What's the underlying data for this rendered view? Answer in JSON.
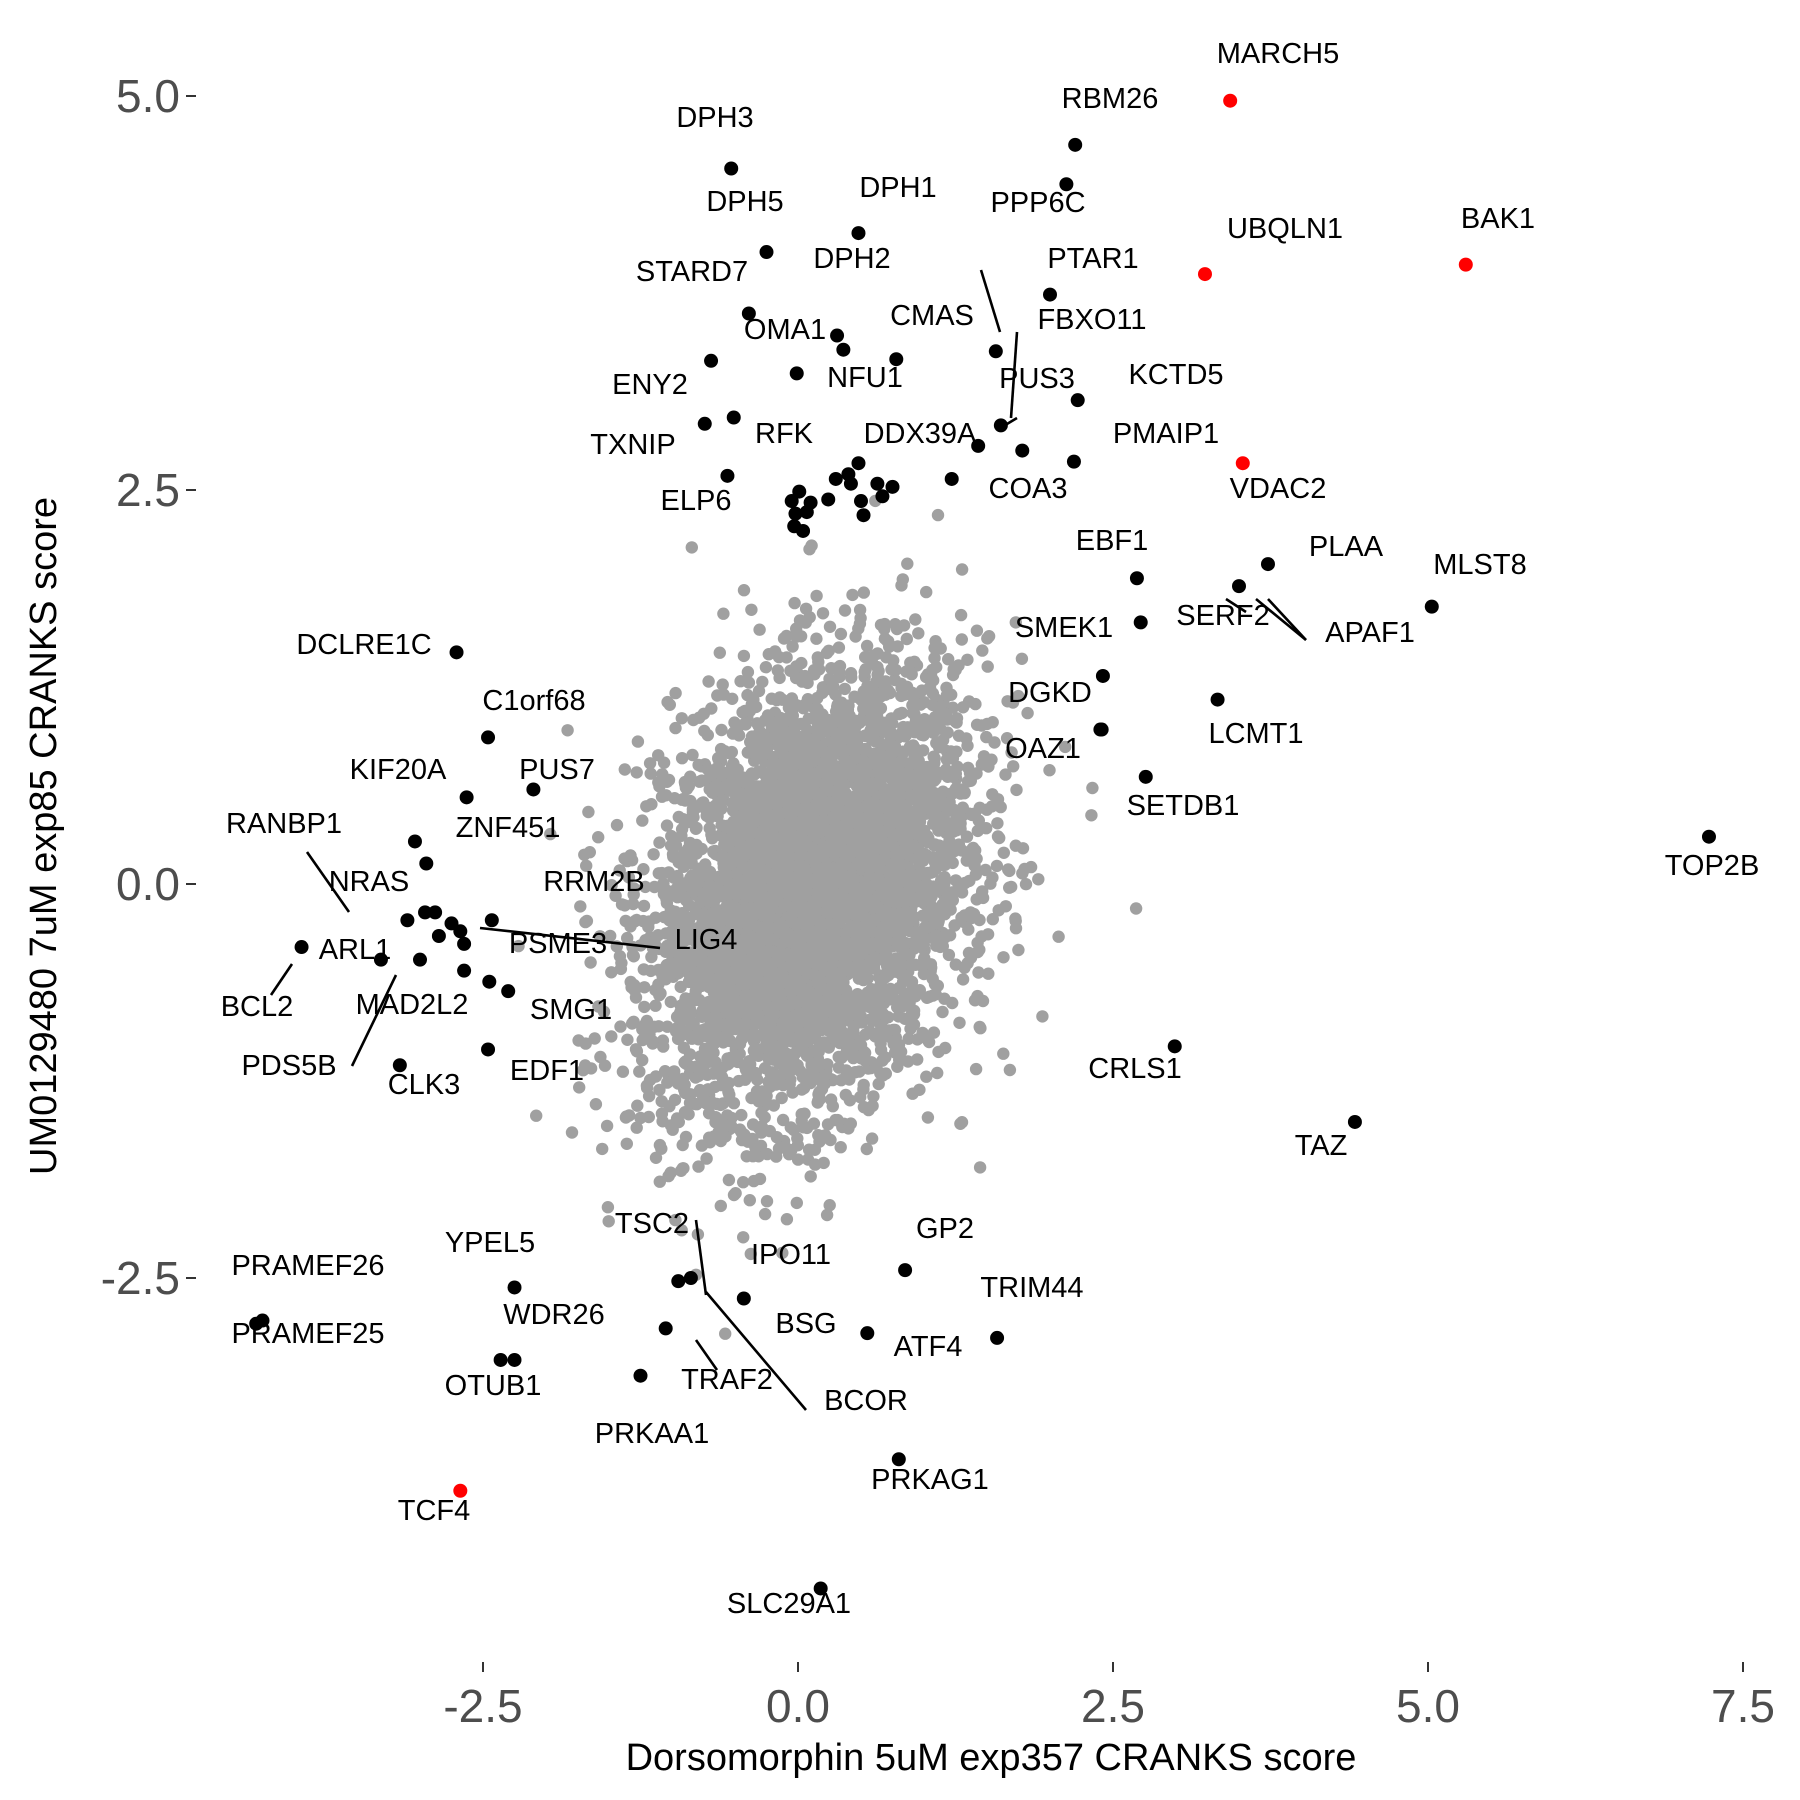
{
  "chart_data": {
    "type": "scatter",
    "xlabel": "Dorsomorphin 5uM exp357 CRANKS score",
    "ylabel": "UM0129480 7uM exp85 CRANKS score",
    "xlim": [
      -4.6,
      7.6
    ],
    "ylim": [
      -4.65,
      5.45
    ],
    "x_ticks": [
      "-2.5",
      "0.0",
      "2.5",
      "5.0",
      "7.5"
    ],
    "y_ticks": [
      "5.0",
      "2.5",
      "0.0",
      "-2.5"
    ],
    "grid": false,
    "background_cloud": {
      "color": "#a0a0a0",
      "center": [
        0.1,
        -0.05
      ],
      "approx_points": 5000,
      "description_x_range": [
        -2.0,
        2.4
      ],
      "description_y_range": [
        -2.4,
        2.3
      ]
    },
    "highlight_colors": {
      "black": "#000000",
      "red": "#ff0000"
    },
    "labeled_points": [
      {
        "label": "MARCH5",
        "x": 3.43,
        "y": 4.97,
        "color": "red"
      },
      {
        "label": "RBM26",
        "x": 2.2,
        "y": 4.69,
        "color": "black"
      },
      {
        "label": "DPH3",
        "x": -0.53,
        "y": 4.54,
        "color": "black"
      },
      {
        "label": "PPP6C",
        "x": 2.13,
        "y": 4.44,
        "color": "black"
      },
      {
        "label": "DPH1",
        "x": 0.48,
        "y": 4.13,
        "color": "black"
      },
      {
        "label": "DPH5",
        "x": -0.25,
        "y": 4.01,
        "color": "black"
      },
      {
        "label": "BAK1",
        "x": 5.3,
        "y": 3.93,
        "color": "red"
      },
      {
        "label": "UBQLN1",
        "x": 3.23,
        "y": 3.87,
        "color": "red"
      },
      {
        "label": "PTAR1",
        "x": 2.0,
        "y": 3.74,
        "color": "black"
      },
      {
        "label": "STARD7",
        "x": -0.39,
        "y": 3.62,
        "color": "black"
      },
      {
        "label": "DPH2",
        "x": 0.31,
        "y": 3.48,
        "color": "black"
      },
      {
        "label": "OMA1",
        "x": 0.36,
        "y": 3.39,
        "color": "black"
      },
      {
        "label": "FBXO11",
        "x": 1.57,
        "y": 3.38,
        "color": "black"
      },
      {
        "label": "CMAS",
        "x": 0.78,
        "y": 3.33,
        "color": "black"
      },
      {
        "label": "ENY2",
        "x": -0.69,
        "y": 3.32,
        "color": "black"
      },
      {
        "label": "NFU1",
        "x": -0.01,
        "y": 3.24,
        "color": "black"
      },
      {
        "label": "KCTD5",
        "x": 2.22,
        "y": 3.07,
        "color": "black"
      },
      {
        "label": "RFK",
        "x": -0.51,
        "y": 2.96,
        "color": "black"
      },
      {
        "label": "TXNIP",
        "x": -0.74,
        "y": 2.92,
        "color": "black"
      },
      {
        "label": "PUS3",
        "x": 1.61,
        "y": 2.91,
        "color": "black"
      },
      {
        "label": "DDX39A",
        "x": 1.43,
        "y": 2.78,
        "color": "black"
      },
      {
        "label": "PMAIP1",
        "x": 2.19,
        "y": 2.68,
        "color": "black"
      },
      {
        "label": "VDAC2",
        "x": 3.53,
        "y": 2.67,
        "color": "red"
      },
      {
        "label": "ELP6",
        "x": -0.56,
        "y": 2.59,
        "color": "black"
      },
      {
        "label": "COA3",
        "x": 1.22,
        "y": 2.57,
        "color": "black"
      },
      {
        "label": "EBF1",
        "x": 2.69,
        "y": 1.94,
        "color": "black"
      },
      {
        "label": "PLAA",
        "x": 3.73,
        "y": 2.03,
        "color": "black"
      },
      {
        "label": "SERF2",
        "x": 3.5,
        "y": 1.89,
        "color": "black"
      },
      {
        "label": "APAF1",
        "x": 3.5,
        "y": 1.89,
        "color": "black"
      },
      {
        "label": "MLST8",
        "x": 5.03,
        "y": 1.76,
        "color": "black"
      },
      {
        "label": "SMEK1",
        "x": 2.72,
        "y": 1.66,
        "color": "black"
      },
      {
        "label": "DCLRE1C",
        "x": -2.71,
        "y": 1.47,
        "color": "black"
      },
      {
        "label": "DGKD",
        "x": 2.42,
        "y": 1.32,
        "color": "black"
      },
      {
        "label": "LCMT1",
        "x": 3.33,
        "y": 1.17,
        "color": "black"
      },
      {
        "label": "C1orf68",
        "x": -2.46,
        "y": 0.93,
        "color": "black"
      },
      {
        "label": "OAZ1",
        "x": 2.4,
        "y": 0.98,
        "color": "black"
      },
      {
        "label": "SETDB1",
        "x": 2.76,
        "y": 0.68,
        "color": "black"
      },
      {
        "label": "KIF20A",
        "x": -2.63,
        "y": 0.55,
        "color": "black"
      },
      {
        "label": "PUS7",
        "x": -2.1,
        "y": 0.6,
        "color": "black"
      },
      {
        "label": "TOP2B",
        "x": 7.23,
        "y": 0.3,
        "color": "black"
      },
      {
        "label": "RANBP1",
        "x": -3.1,
        "y": -0.23,
        "color": "black"
      },
      {
        "label": "ZNF451",
        "x": -2.95,
        "y": 0.13,
        "color": "black"
      },
      {
        "label": "NRAS",
        "x": -3.04,
        "y": 0.27,
        "color": "black"
      },
      {
        "label": "RRM2B",
        "x": -2.75,
        "y": -0.25,
        "color": "black"
      },
      {
        "label": "LIG4",
        "x": -2.43,
        "y": -0.23,
        "color": "black"
      },
      {
        "label": "PSME3",
        "x": -2.65,
        "y": -0.38,
        "color": "black"
      },
      {
        "label": "ARL1",
        "x": -2.96,
        "y": -0.18,
        "color": "black"
      },
      {
        "label": "BCL2",
        "x": -3.94,
        "y": -0.4,
        "color": "black"
      },
      {
        "label": "MAD2L2",
        "x": -3.0,
        "y": -0.48,
        "color": "black"
      },
      {
        "label": "PDS5B",
        "x": -3.31,
        "y": -0.48,
        "color": "black"
      },
      {
        "label": "SMG1",
        "x": -2.3,
        "y": -0.68,
        "color": "black"
      },
      {
        "label": "CLK3",
        "x": -3.16,
        "y": -1.15,
        "color": "black"
      },
      {
        "label": "EDF1",
        "x": -2.46,
        "y": -1.05,
        "color": "black"
      },
      {
        "label": "CRLS1",
        "x": 2.99,
        "y": -1.03,
        "color": "black"
      },
      {
        "label": "TAZ",
        "x": 4.42,
        "y": -1.51,
        "color": "black"
      },
      {
        "label": "TSC2",
        "x": -0.95,
        "y": -2.52,
        "color": "black"
      },
      {
        "label": "GP2",
        "x": 0.85,
        "y": -2.45,
        "color": "black"
      },
      {
        "label": "YPEL5",
        "x": -2.25,
        "y": -2.56,
        "color": "black"
      },
      {
        "label": "IPO11",
        "x": -0.43,
        "y": -2.63,
        "color": "black"
      },
      {
        "label": "PRAMEF26",
        "x": -4.25,
        "y": -2.77,
        "color": "black"
      },
      {
        "label": "PRAMEF25",
        "x": -4.3,
        "y": -2.79,
        "color": "black"
      },
      {
        "label": "WDR26",
        "x": -2.25,
        "y": -3.02,
        "color": "black"
      },
      {
        "label": "OTUB1",
        "x": -2.36,
        "y": -3.02,
        "color": "black"
      },
      {
        "label": "BSG",
        "x": 0.55,
        "y": -2.85,
        "color": "black"
      },
      {
        "label": "TRIM44",
        "x": 1.58,
        "y": -2.88,
        "color": "black"
      },
      {
        "label": "TRAF2",
        "x": -1.05,
        "y": -2.82,
        "color": "black"
      },
      {
        "label": "BCOR",
        "x": -0.85,
        "y": -2.5,
        "color": "black"
      },
      {
        "label": "ATF4",
        "x": 0.55,
        "y": -2.85,
        "color": "black"
      },
      {
        "label": "PRKAA1",
        "x": -1.25,
        "y": -3.12,
        "color": "black"
      },
      {
        "label": "PRKAG1",
        "x": 0.8,
        "y": -3.65,
        "color": "black"
      },
      {
        "label": "TCF4",
        "x": -2.68,
        "y": -3.85,
        "color": "red"
      },
      {
        "label": "SLC29A1",
        "x": 0.18,
        "y": -4.47,
        "color": "black"
      }
    ],
    "unlabeled_highlighted_points": [
      {
        "x": 0.3,
        "y": 2.57
      },
      {
        "x": 0.1,
        "y": 2.42
      },
      {
        "x": -0.05,
        "y": 2.43
      },
      {
        "x": 0.07,
        "y": 2.36
      },
      {
        "x": 0.24,
        "y": 2.44
      },
      {
        "x": 0.5,
        "y": 2.43
      },
      {
        "x": 0.63,
        "y": 2.54
      },
      {
        "x": 0.75,
        "y": 2.52
      },
      {
        "x": 0.67,
        "y": 2.46
      },
      {
        "x": 0.42,
        "y": 2.54
      },
      {
        "x": 0.4,
        "y": 2.6
      },
      {
        "x": 0.48,
        "y": 2.67
      },
      {
        "x": 0.01,
        "y": 2.49
      },
      {
        "x": -0.03,
        "y": 2.27
      },
      {
        "x": 0.04,
        "y": 2.24
      },
      {
        "x": 0.52,
        "y": 2.34
      },
      {
        "x": 1.78,
        "y": 2.75
      },
      {
        "x": 2.41,
        "y": 0.98
      },
      {
        "x": -0.02,
        "y": 2.35
      },
      {
        "x": -2.88,
        "y": -0.18
      },
      {
        "x": -2.85,
        "y": -0.33
      },
      {
        "x": -2.68,
        "y": -0.3
      },
      {
        "x": -2.65,
        "y": -0.55
      },
      {
        "x": -2.45,
        "y": -0.62
      }
    ]
  }
}
